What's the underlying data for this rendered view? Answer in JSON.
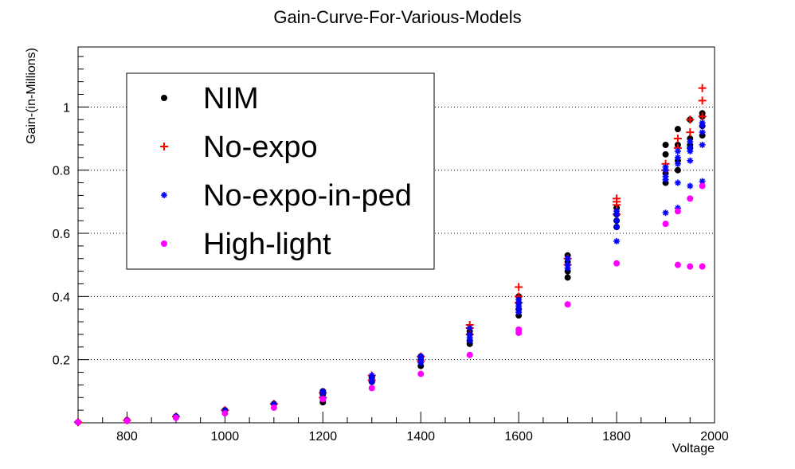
{
  "chart_data": {
    "type": "scatter",
    "title": "Gain-Curve-For-Various-Models",
    "xlabel": "Voltage",
    "ylabel": "Gain-(in-Millions)",
    "xlim": [
      700,
      2000
    ],
    "ylim": [
      0,
      1.19
    ],
    "x_ticks": [
      800,
      1000,
      1200,
      1400,
      1600,
      1800,
      2000
    ],
    "y_ticks": [
      0.2,
      0.4,
      0.6,
      0.8,
      1
    ],
    "grid": "horizontal-dotted",
    "legend_position": "top-left",
    "series": [
      {
        "name": "NIM",
        "color": "#000000",
        "marker": "circle",
        "points": [
          [
            700,
            0.002
          ],
          [
            800,
            0.008
          ],
          [
            900,
            0.02
          ],
          [
            1000,
            0.04
          ],
          [
            1100,
            0.06
          ],
          [
            1200,
            0.065
          ],
          [
            1200,
            0.075
          ],
          [
            1200,
            0.09
          ],
          [
            1200,
            0.1
          ],
          [
            1300,
            0.13
          ],
          [
            1300,
            0.145
          ],
          [
            1400,
            0.18
          ],
          [
            1400,
            0.2
          ],
          [
            1400,
            0.21
          ],
          [
            1500,
            0.25
          ],
          [
            1500,
            0.26
          ],
          [
            1500,
            0.28
          ],
          [
            1500,
            0.29
          ],
          [
            1600,
            0.34
          ],
          [
            1600,
            0.36
          ],
          [
            1600,
            0.38
          ],
          [
            1600,
            0.4
          ],
          [
            1700,
            0.46
          ],
          [
            1700,
            0.48
          ],
          [
            1700,
            0.51
          ],
          [
            1700,
            0.53
          ],
          [
            1800,
            0.62
          ],
          [
            1800,
            0.64
          ],
          [
            1800,
            0.66
          ],
          [
            1800,
            0.68
          ],
          [
            1900,
            0.76
          ],
          [
            1900,
            0.79
          ],
          [
            1900,
            0.85
          ],
          [
            1900,
            0.88
          ],
          [
            1925,
            0.8
          ],
          [
            1925,
            0.83
          ],
          [
            1925,
            0.88
          ],
          [
            1925,
            0.93
          ],
          [
            1950,
            0.87
          ],
          [
            1950,
            0.88
          ],
          [
            1950,
            0.9
          ],
          [
            1950,
            0.96
          ],
          [
            1975,
            0.91
          ],
          [
            1975,
            0.94
          ],
          [
            1975,
            0.97
          ],
          [
            1975,
            0.98
          ]
        ]
      },
      {
        "name": "No-expo",
        "color": "#ff0000",
        "marker": "plus",
        "points": [
          [
            700,
            0.002
          ],
          [
            800,
            0.008
          ],
          [
            900,
            0.02
          ],
          [
            1000,
            0.04
          ],
          [
            1100,
            0.06
          ],
          [
            1200,
            0.08
          ],
          [
            1200,
            0.095
          ],
          [
            1300,
            0.135
          ],
          [
            1300,
            0.15
          ],
          [
            1400,
            0.195
          ],
          [
            1400,
            0.21
          ],
          [
            1500,
            0.28
          ],
          [
            1500,
            0.3
          ],
          [
            1500,
            0.31
          ],
          [
            1600,
            0.38
          ],
          [
            1600,
            0.4
          ],
          [
            1600,
            0.43
          ],
          [
            1700,
            0.5
          ],
          [
            1700,
            0.52
          ],
          [
            1800,
            0.66
          ],
          [
            1800,
            0.69
          ],
          [
            1800,
            0.7
          ],
          [
            1800,
            0.71
          ],
          [
            1900,
            0.8
          ],
          [
            1900,
            0.82
          ],
          [
            1925,
            0.87
          ],
          [
            1925,
            0.9
          ],
          [
            1950,
            0.92
          ],
          [
            1950,
            0.96
          ],
          [
            1975,
            0.97
          ],
          [
            1975,
            1.02
          ],
          [
            1975,
            1.06
          ]
        ]
      },
      {
        "name": "No-expo-in-ped",
        "color": "#0000ff",
        "marker": "star",
        "points": [
          [
            700,
            0.002
          ],
          [
            800,
            0.008
          ],
          [
            900,
            0.02
          ],
          [
            1000,
            0.038
          ],
          [
            1100,
            0.06
          ],
          [
            1200,
            0.08
          ],
          [
            1200,
            0.095
          ],
          [
            1200,
            0.1
          ],
          [
            1300,
            0.13
          ],
          [
            1300,
            0.14
          ],
          [
            1300,
            0.15
          ],
          [
            1400,
            0.19
          ],
          [
            1400,
            0.2
          ],
          [
            1400,
            0.21
          ],
          [
            1500,
            0.26
          ],
          [
            1500,
            0.27
          ],
          [
            1500,
            0.28
          ],
          [
            1500,
            0.3
          ],
          [
            1600,
            0.35
          ],
          [
            1600,
            0.36
          ],
          [
            1600,
            0.37
          ],
          [
            1600,
            0.38
          ],
          [
            1600,
            0.39
          ],
          [
            1700,
            0.49
          ],
          [
            1700,
            0.5
          ],
          [
            1700,
            0.52
          ],
          [
            1800,
            0.575
          ],
          [
            1800,
            0.62
          ],
          [
            1800,
            0.64
          ],
          [
            1800,
            0.66
          ],
          [
            1800,
            0.67
          ],
          [
            1900,
            0.665
          ],
          [
            1900,
            0.77
          ],
          [
            1900,
            0.78
          ],
          [
            1900,
            0.8
          ],
          [
            1900,
            0.81
          ],
          [
            1925,
            0.68
          ],
          [
            1925,
            0.76
          ],
          [
            1925,
            0.82
          ],
          [
            1925,
            0.84
          ],
          [
            1925,
            0.86
          ],
          [
            1950,
            0.75
          ],
          [
            1950,
            0.83
          ],
          [
            1950,
            0.86
          ],
          [
            1950,
            0.87
          ],
          [
            1950,
            0.89
          ],
          [
            1975,
            0.765
          ],
          [
            1975,
            0.88
          ],
          [
            1975,
            0.92
          ],
          [
            1975,
            0.94
          ],
          [
            1975,
            0.95
          ]
        ]
      },
      {
        "name": "High-light",
        "color": "#ff00ff",
        "marker": "circle",
        "points": [
          [
            700,
            0.002
          ],
          [
            800,
            0.006
          ],
          [
            900,
            0.016
          ],
          [
            1000,
            0.03
          ],
          [
            1100,
            0.048
          ],
          [
            1200,
            0.075
          ],
          [
            1300,
            0.11
          ],
          [
            1400,
            0.155
          ],
          [
            1500,
            0.215
          ],
          [
            1600,
            0.285
          ],
          [
            1600,
            0.295
          ],
          [
            1700,
            0.375
          ],
          [
            1800,
            0.505
          ],
          [
            1900,
            0.63
          ],
          [
            1925,
            0.5
          ],
          [
            1925,
            0.67
          ],
          [
            1950,
            0.495
          ],
          [
            1950,
            0.71
          ],
          [
            1975,
            0.495
          ],
          [
            1975,
            0.75
          ]
        ]
      }
    ]
  }
}
